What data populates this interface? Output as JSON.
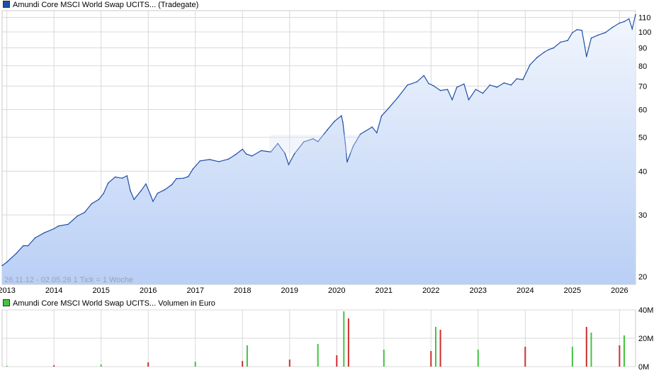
{
  "chart_data": [
    {
      "type": "area",
      "legend": "Amundi Core MSCI World Swap UCITS... (Tradegate)",
      "color": "#1f4fa8",
      "fill_top": "#f2f6fd",
      "fill_bottom": "#b9cff5",
      "yscale": "log",
      "ylim": [
        19,
        115
      ],
      "yticks": [
        20,
        30,
        40,
        50,
        60,
        70,
        80,
        90,
        100,
        110
      ],
      "xlim": [
        2012.9,
        2026.34
      ],
      "xticks": [
        "2013",
        "2014",
        "2015",
        "2016",
        "2017",
        "2018",
        "2019",
        "2020",
        "2021",
        "2022",
        "2023",
        "2024",
        "2025",
        "2026"
      ],
      "range_label": "26.11.12 - 02.05.26    1 Tick = 1 Woche",
      "series": [
        {
          "x": [
            2012.9,
            2013.0,
            2013.2,
            2013.35,
            2013.45,
            2013.6,
            2013.8,
            2014.0,
            2014.1,
            2014.3,
            2014.5,
            2014.65,
            2014.8,
            2014.95,
            2015.05,
            2015.15,
            2015.3,
            2015.45,
            2015.55,
            2015.62,
            2015.7,
            2015.85,
            2015.95,
            2016.05,
            2016.1,
            2016.2,
            2016.35,
            2016.5,
            2016.6,
            2016.75,
            2016.85,
            2016.95,
            2017.1,
            2017.3,
            2017.5,
            2017.7,
            2017.85,
            2018.0,
            2018.08,
            2018.2,
            2018.4,
            2018.6,
            2018.75,
            2018.9,
            2018.98,
            2019.1,
            2019.3,
            2019.5,
            2019.6,
            2019.8,
            2019.95,
            2020.1,
            2020.13,
            2020.18,
            2020.22,
            2020.35,
            2020.5,
            2020.6,
            2020.75,
            2020.85,
            2020.95,
            2021.1,
            2021.3,
            2021.5,
            2021.7,
            2021.85,
            2021.95,
            2022.05,
            2022.2,
            2022.35,
            2022.45,
            2022.55,
            2022.7,
            2022.8,
            2022.95,
            2023.1,
            2023.25,
            2023.4,
            2023.55,
            2023.7,
            2023.82,
            2023.95,
            2024.1,
            2024.25,
            2024.4,
            2024.5,
            2024.6,
            2024.75,
            2024.9,
            2025.0,
            2025.1,
            2025.2,
            2025.25,
            2025.3,
            2025.4,
            2025.55,
            2025.7,
            2025.85,
            2026.0,
            2026.1,
            2026.2,
            2026.27,
            2026.34
          ],
          "y": [
            21.5,
            22.0,
            23.3,
            24.5,
            24.5,
            25.8,
            26.7,
            27.4,
            27.9,
            28.2,
            29.8,
            30.5,
            32.3,
            33.2,
            34.5,
            37.0,
            38.5,
            38.2,
            38.8,
            35.2,
            33.2,
            35.2,
            36.8,
            34.2,
            32.8,
            34.6,
            35.4,
            36.6,
            38.1,
            38.2,
            38.6,
            40.6,
            42.8,
            43.2,
            42.6,
            43.3,
            44.6,
            46.2,
            44.8,
            44.2,
            45.8,
            45.4,
            48.0,
            45.0,
            41.8,
            44.8,
            48.5,
            49.5,
            48.6,
            52.5,
            55.5,
            57.6,
            55.2,
            48.2,
            42.5,
            47.2,
            51.0,
            52.0,
            53.5,
            51.5,
            57.5,
            60.5,
            65.0,
            70.5,
            72.0,
            75.0,
            71.2,
            70.2,
            68.0,
            68.5,
            64.0,
            69.5,
            71.0,
            64.0,
            68.5,
            66.8,
            70.5,
            69.5,
            71.5,
            70.5,
            73.5,
            73.0,
            80.5,
            84.5,
            87.5,
            89.0,
            90.0,
            93.5,
            94.5,
            99.5,
            101.5,
            101.0,
            93.0,
            85.0,
            96.0,
            98.0,
            99.5,
            103.0,
            106.0,
            107.0,
            109.0,
            102.0,
            112.0
          ]
        }
      ]
    },
    {
      "type": "bar",
      "legend": "Amundi Core MSCI World Swap UCITS... Volumen in Euro",
      "up_color": "#43c43e",
      "down_color": "#cf2e2e",
      "ylim": [
        0,
        40
      ],
      "yticks": [
        "0M",
        "20M",
        "40M"
      ],
      "series": [
        {
          "name": "Volumen in Euro (M)",
          "x": [
            2013,
            2014,
            2015,
            2016,
            2017,
            2018,
            2018.1,
            2019,
            2019.6,
            2020,
            2020.15,
            2020.25,
            2021,
            2022,
            2022.1,
            2022.2,
            2023,
            2024,
            2025,
            2025.3,
            2025.4,
            2026,
            2026.1
          ],
          "values": [
            0.5,
            1,
            1.5,
            3,
            3.5,
            4,
            15,
            5,
            16,
            8,
            39,
            34,
            12,
            11,
            28,
            26,
            12,
            14,
            14,
            28,
            24,
            15,
            22
          ]
        }
      ]
    }
  ]
}
